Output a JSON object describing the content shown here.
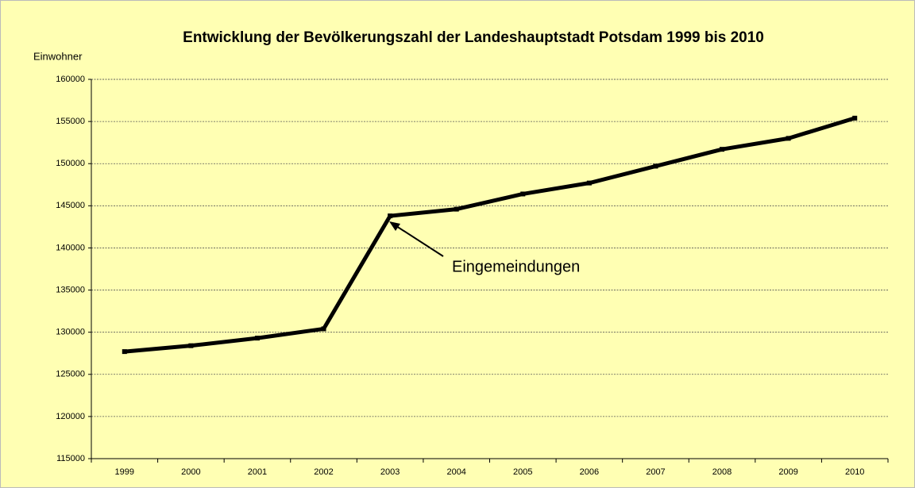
{
  "chart_data": {
    "type": "line",
    "title": "Entwicklung der Bevölkerungszahl der Landeshauptstadt Potsdam 1999 bis 2010",
    "y_label": "Einwohner",
    "annotation": "Eingemeindungen",
    "categories": [
      "1999",
      "2000",
      "2001",
      "2002",
      "2003",
      "2004",
      "2005",
      "2006",
      "2007",
      "2008",
      "2009",
      "2010"
    ],
    "series": [
      {
        "name": "Einwohner",
        "color": "#000000",
        "values": [
          127700,
          128400,
          129300,
          130400,
          143800,
          144600,
          146400,
          147700,
          149700,
          151700,
          153000,
          155400
        ]
      }
    ],
    "ylim": [
      115000,
      160000
    ],
    "yticks": [
      115000,
      120000,
      125000,
      130000,
      135000,
      140000,
      145000,
      150000,
      155000,
      160000
    ],
    "grid": true
  }
}
